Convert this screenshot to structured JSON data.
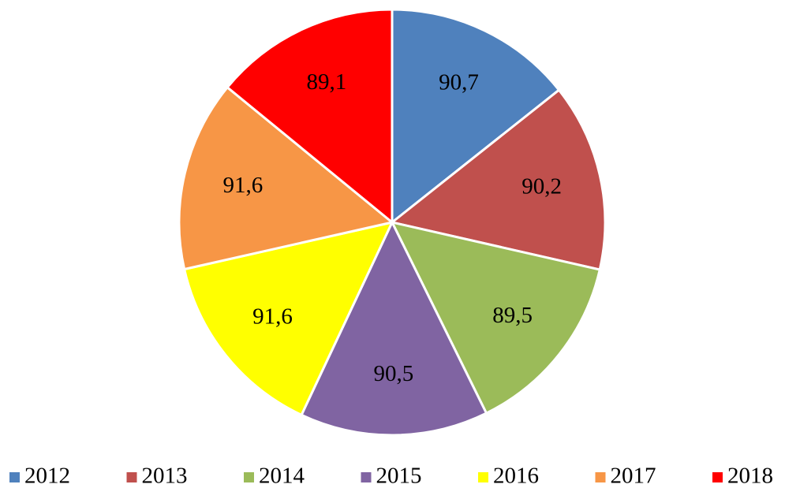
{
  "chart_data": {
    "type": "pie",
    "categories": [
      "2012",
      "2013",
      "2014",
      "2015",
      "2016",
      "2017",
      "2018"
    ],
    "values": [
      90.7,
      90.2,
      89.5,
      90.5,
      91.6,
      91.6,
      89.1
    ],
    "value_labels": [
      "90,7",
      "90,2",
      "89,5",
      "90,5",
      "91,6",
      "91,6",
      "89,1"
    ],
    "colors": [
      "#4f81bd",
      "#c0504d",
      "#9bbb59",
      "#8064a2",
      "#ffff00",
      "#f79646",
      "#ff0000"
    ],
    "legend": "bottom"
  }
}
